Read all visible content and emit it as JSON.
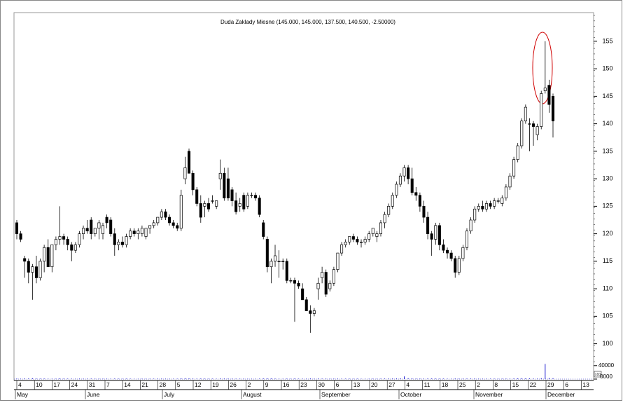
{
  "chart_data": {
    "type": "candlestick",
    "title": "Duda Zaklady Miesne (145.000, 145.000, 137.500, 140.500, -2.50000)",
    "ylim": [
      96,
      159.7
    ],
    "yticks": [
      100,
      105,
      110,
      115,
      120,
      125,
      130,
      135,
      140,
      145,
      150,
      155
    ],
    "up_color": "#ffffff",
    "down_color": "#000000",
    "volume_color": "#1f1fd0",
    "volume_lim": [
      0,
      50000
    ],
    "volume_ticks": [
      40000,
      {
        "value": 0,
        "label": "0000"
      }
    ],
    "volume_unit": "x10",
    "week_labels": [
      "4",
      "10",
      "17",
      "24",
      "31",
      "7",
      "14",
      "21",
      "28",
      "5",
      "12",
      "19",
      "26",
      "2",
      "9",
      "16",
      "23",
      "30",
      "6",
      "13",
      "20",
      "27",
      "4",
      "11",
      "18",
      "25",
      "2",
      "8",
      "15",
      "22",
      "29",
      "6",
      "13"
    ],
    "months": [
      "May",
      "June",
      "July",
      "August",
      "September",
      "October",
      "November",
      "December"
    ],
    "candles": [
      [
        122,
        122.5,
        119,
        120
      ],
      [
        120,
        120.5,
        118.5,
        119
      ],
      [
        115.5,
        116,
        112,
        115
      ],
      [
        115,
        115.5,
        111,
        113
      ],
      [
        113,
        114.5,
        108,
        114
      ],
      [
        114,
        116,
        111,
        112
      ],
      [
        112,
        115.5,
        111.5,
        115
      ],
      [
        115,
        118,
        113,
        117.5
      ],
      [
        117.5,
        119,
        114,
        114
      ],
      [
        114,
        118,
        113,
        118
      ],
      [
        118,
        119.5,
        117,
        119
      ],
      [
        119,
        125,
        118,
        119.5
      ],
      [
        119.5,
        120,
        118,
        119
      ],
      [
        119,
        119.5,
        117,
        118
      ],
      [
        118,
        118.5,
        115,
        117
      ],
      [
        117,
        118.5,
        116.5,
        118
      ],
      [
        118,
        120.5,
        117.5,
        120
      ],
      [
        120,
        121.5,
        119,
        121
      ],
      [
        121,
        122.5,
        120,
        120.5
      ],
      [
        122.5,
        123,
        119,
        120
      ],
      [
        120,
        121,
        119.5,
        121
      ],
      [
        121,
        122.5,
        119,
        122
      ],
      [
        120,
        122,
        119,
        121.5
      ],
      [
        123,
        123.5,
        121,
        122
      ],
      [
        122.5,
        123,
        119.5,
        120
      ],
      [
        120,
        121,
        116,
        118
      ],
      [
        118,
        119,
        117,
        118.5
      ],
      [
        118.5,
        119.5,
        117.5,
        118
      ],
      [
        118,
        120,
        117.5,
        119.5
      ],
      [
        119.5,
        121,
        119,
        120.5
      ],
      [
        120.5,
        121,
        119.5,
        120
      ],
      [
        120,
        121,
        119,
        120.5
      ],
      [
        120,
        121.5,
        119.5,
        121
      ],
      [
        119.5,
        121,
        119,
        121
      ],
      [
        121,
        121.5,
        120,
        121.5
      ],
      [
        121.5,
        122.5,
        121,
        122
      ],
      [
        122,
        123,
        121.5,
        123
      ],
      [
        123,
        124.5,
        122.5,
        124
      ],
      [
        124,
        124.5,
        122.5,
        123
      ],
      [
        123,
        123.5,
        121.5,
        122
      ],
      [
        122,
        122.5,
        121,
        121.5
      ],
      [
        121.5,
        122,
        120.5,
        121
      ],
      [
        121,
        128,
        120.5,
        127
      ],
      [
        130,
        134,
        129,
        132
      ],
      [
        135,
        135.5,
        131,
        131
      ],
      [
        131,
        131.5,
        127,
        128
      ],
      [
        128,
        128.5,
        125,
        125.5
      ],
      [
        125.5,
        127,
        122,
        123
      ],
      [
        125,
        126,
        123,
        125.5
      ],
      [
        125.5,
        126.5,
        124,
        124.5
      ],
      [
        126,
        127,
        125.5,
        126
      ],
      [
        125,
        126,
        124.5,
        126
      ],
      [
        130,
        133.5,
        128,
        131
      ],
      [
        131,
        132,
        126,
        126.5
      ],
      [
        130,
        132,
        126,
        126.5
      ],
      [
        128,
        128.5,
        125,
        126
      ],
      [
        126,
        127.5,
        123.5,
        124
      ],
      [
        125,
        126.5,
        124,
        125.5
      ],
      [
        127,
        127.5,
        124,
        124.5
      ],
      [
        125,
        127.5,
        124.5,
        127
      ],
      [
        127,
        127.5,
        126.5,
        127
      ],
      [
        127,
        127.5,
        126,
        126.5
      ],
      [
        126.5,
        127,
        123,
        123.5
      ],
      [
        122,
        122.5,
        119,
        119.5
      ],
      [
        119,
        119.5,
        113,
        114
      ],
      [
        114,
        115.5,
        111,
        115
      ],
      [
        115,
        118,
        114,
        116
      ],
      [
        115,
        117,
        112,
        115
      ],
      [
        115,
        115.5,
        113.5,
        115
      ],
      [
        115,
        115.5,
        111,
        111.5
      ],
      [
        111.5,
        112,
        111,
        111.5
      ],
      [
        111.5,
        112,
        104,
        111
      ],
      [
        111,
        111.5,
        110,
        110.5
      ],
      [
        110,
        111,
        108,
        108
      ],
      [
        108,
        108.5,
        106,
        106
      ],
      [
        106,
        107,
        102,
        105.5
      ],
      [
        105.5,
        106.5,
        105,
        106
      ],
      [
        110,
        112,
        108,
        111
      ],
      [
        112,
        114,
        111,
        113
      ],
      [
        113,
        113.5,
        108.5,
        109
      ],
      [
        110,
        111.5,
        109.5,
        111
      ],
      [
        111,
        114,
        110.5,
        113.5
      ],
      [
        113.5,
        116.5,
        113,
        116.5
      ],
      [
        116.5,
        118.5,
        116,
        118
      ],
      [
        118,
        119,
        117.5,
        118.5
      ],
      [
        118.5,
        119.5,
        118,
        119.5
      ],
      [
        119.5,
        120,
        118.5,
        119
      ],
      [
        119,
        119.5,
        118,
        118.5
      ],
      [
        118.5,
        119,
        117.5,
        118.5
      ],
      [
        118.5,
        119.5,
        118,
        119
      ],
      [
        119,
        120.5,
        118.5,
        120
      ],
      [
        120,
        121,
        119.5,
        121
      ],
      [
        119.5,
        120.5,
        118.5,
        120
      ],
      [
        120,
        122.5,
        119.5,
        122
      ],
      [
        122,
        124,
        121,
        123.5
      ],
      [
        123.5,
        125.5,
        123,
        125
      ],
      [
        125,
        127.5,
        124.5,
        127
      ],
      [
        127,
        129.5,
        126.5,
        129
      ],
      [
        129,
        131,
        128.5,
        130.5
      ],
      [
        130.5,
        132.5,
        129.5,
        132
      ],
      [
        132,
        132.5,
        129,
        130
      ],
      [
        130,
        132,
        127,
        127.5
      ],
      [
        127.5,
        128.5,
        126,
        127
      ],
      [
        127,
        127.5,
        124,
        125
      ],
      [
        125,
        126,
        122,
        123
      ],
      [
        123,
        124,
        119,
        120
      ],
      [
        120,
        120.5,
        116,
        119
      ],
      [
        119,
        122,
        118,
        121.5
      ],
      [
        121.5,
        122,
        117,
        118
      ],
      [
        118,
        119,
        116.5,
        117
      ],
      [
        117,
        117.5,
        115.5,
        116.5
      ],
      [
        116.5,
        117,
        115,
        115.5
      ],
      [
        115.5,
        116,
        112,
        113
      ],
      [
        113,
        116,
        112.5,
        115.5
      ],
      [
        115.5,
        118,
        115,
        117.5
      ],
      [
        117.5,
        121,
        117,
        120.5
      ],
      [
        120.5,
        123,
        120,
        122.5
      ],
      [
        122.5,
        125,
        122,
        124.5
      ],
      [
        124.5,
        125.5,
        124,
        125
      ],
      [
        125,
        126,
        124,
        124.5
      ],
      [
        124.5,
        126,
        124,
        125.5
      ],
      [
        125.5,
        126,
        124.5,
        125
      ],
      [
        125,
        126.5,
        124.5,
        126
      ],
      [
        126,
        126.5,
        125.5,
        126
      ],
      [
        125.5,
        127,
        125,
        126.5
      ],
      [
        126.5,
        129,
        126,
        128.5
      ],
      [
        128.5,
        131,
        128,
        130.5
      ],
      [
        130.5,
        134,
        130,
        133.5
      ],
      [
        133.5,
        136.5,
        133,
        136
      ],
      [
        136,
        141,
        135.5,
        140.5
      ],
      [
        140.5,
        143.5,
        140,
        143
      ],
      [
        140,
        141,
        135,
        140
      ],
      [
        140,
        140.5,
        136,
        139.5
      ],
      [
        138,
        140,
        137,
        139.5
      ],
      [
        139.5,
        146,
        139,
        145.5
      ],
      [
        146,
        155,
        145.5,
        146.5
      ],
      [
        147,
        148,
        142,
        143.5
      ],
      [
        145,
        145.5,
        137.5,
        140.5
      ]
    ],
    "volume": [
      1500,
      1200,
      2000,
      1800,
      2500,
      1500,
      1200,
      1600,
      1400,
      1300,
      1200,
      2200,
      1500,
      1300,
      1200,
      1100,
      1400,
      1300,
      1200,
      1500,
      1100,
      1300,
      1200,
      1400,
      1200,
      1600,
      1100,
      1000,
      1200,
      1300,
      1100,
      1000,
      1200,
      1100,
      1000,
      1200,
      1300,
      1500,
      1200,
      1100,
      1000,
      1100,
      2000,
      2500,
      2200,
      1800,
      1500,
      1600,
      1300,
      1200,
      1100,
      1000,
      2000,
      1700,
      1600,
      1300,
      1200,
      1100,
      1200,
      1100,
      1000,
      1000,
      1300,
      1800,
      2200,
      1900,
      1600,
      1500,
      1200,
      1400,
      1000,
      1800,
      1100,
      1200,
      1300,
      1900,
      1200,
      1600,
      1400,
      1300,
      1200,
      1400,
      1500,
      1300,
      1200,
      1100,
      1000,
      1100,
      1000,
      1200,
      1200,
      1300,
      1100,
      1300,
      1500,
      1600,
      1800,
      2000,
      2200,
      8000,
      2500,
      2000,
      1600,
      1500,
      1700,
      2000,
      1800,
      1600,
      1400,
      1300,
      1200,
      1200,
      1800,
      1500,
      1400,
      1600,
      1500,
      1700,
      1300,
      1200,
      1200,
      1100,
      1200,
      1100,
      1200,
      1500,
      1700,
      2000,
      2200,
      2500,
      2300,
      1900,
      1600,
      1500,
      2600,
      45000,
      3000,
      2500
    ]
  }
}
